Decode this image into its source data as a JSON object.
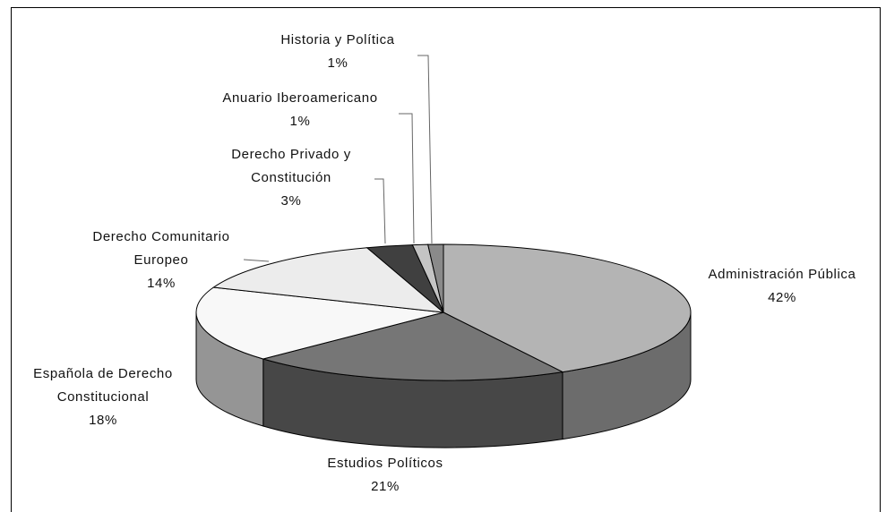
{
  "chart_data": {
    "type": "pie3d",
    "categories": [
      "Administración Pública",
      "Estudios Políticos",
      "Española de Derecho Constitucional",
      "Derecho Comunitario Europeo",
      "Derecho Privado y Constitución",
      "Anuario Iberoamericano",
      "Historia y Política"
    ],
    "values": [
      42,
      21,
      18,
      14,
      3,
      1,
      1
    ],
    "value_labels": [
      "42%",
      "21%",
      "18%",
      "14%",
      "3%",
      "1%",
      "1%"
    ],
    "colors": [
      "#b4b4b4",
      "#767676",
      "#f8f8f8",
      "#ececec",
      "#404040",
      "#c4c4c4",
      "#8a8a8a"
    ]
  }
}
